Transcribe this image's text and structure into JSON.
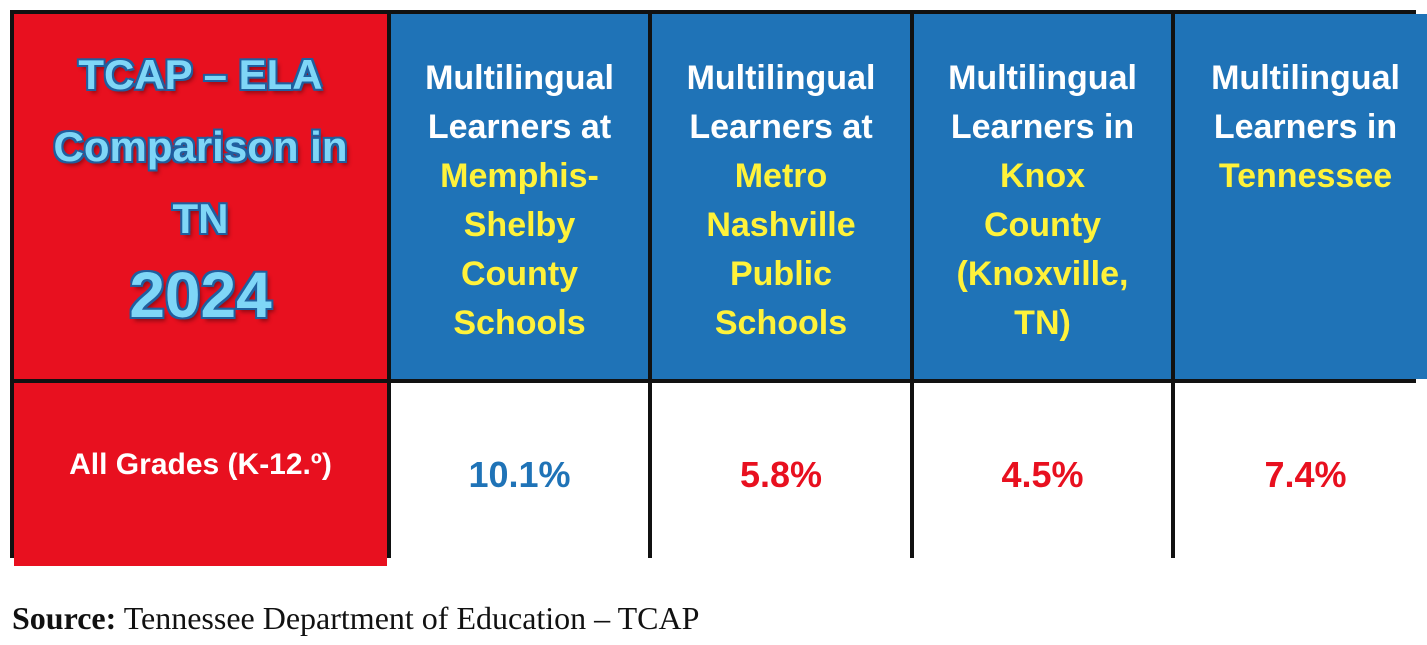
{
  "table": {
    "title": {
      "text": "TCAP – ELA Comparison in TN",
      "year": "2024"
    },
    "columns": [
      {
        "lead": "Multilingual Learners at",
        "place": "Memphis-Shelby County Schools"
      },
      {
        "lead": "Multilingual Learners at",
        "place": "Metro Nashville Public Schools"
      },
      {
        "lead": "Multilingual Learners in",
        "place": "Knox County (Knoxville, TN)"
      },
      {
        "lead": "Multilingual Learners in",
        "place": "Tennessee"
      }
    ],
    "rows": [
      {
        "label": "All Grades (K-12.º)",
        "cells": [
          "10.1%",
          "5.8%",
          "4.5%",
          "7.4%"
        ]
      }
    ]
  },
  "source": {
    "label": "Source:",
    "text": "Tennessee Department of Education – TCAP"
  }
}
